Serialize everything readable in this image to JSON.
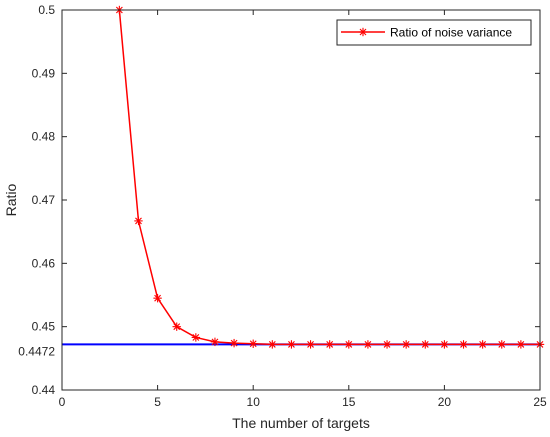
{
  "chart_data": {
    "type": "line",
    "title": "",
    "xlabel": "The number of targets",
    "ylabel": "Ratio",
    "xlim": [
      0,
      25
    ],
    "ylim": [
      0.44,
      0.5
    ],
    "x_ticks": [
      "0",
      "5",
      "10",
      "15",
      "20",
      "25"
    ],
    "y_ticks": [
      "0.44",
      "0.45",
      "0.46",
      "0.47",
      "0.48",
      "0.49",
      "0.5"
    ],
    "grid": false,
    "legend_position": "top-right",
    "series": [
      {
        "name": "Ratio of noise variance",
        "color": "#ff0000",
        "marker": "asterisk",
        "x": [
          3,
          4,
          5,
          6,
          7,
          8,
          9,
          10,
          11,
          12,
          13,
          14,
          15,
          16,
          17,
          18,
          19,
          20,
          21,
          22,
          23,
          24,
          25
        ],
        "y": [
          0.5,
          0.4667,
          0.4545,
          0.45,
          0.4483,
          0.4476,
          0.4474,
          0.4473,
          0.4472,
          0.4472,
          0.4472,
          0.4472,
          0.4472,
          0.4472,
          0.4472,
          0.4472,
          0.4472,
          0.4472,
          0.4472,
          0.4472,
          0.4472,
          0.4472,
          0.4472
        ]
      }
    ],
    "reference_line": {
      "y": 0.4472,
      "label": "0.4472",
      "color": "#0000ff"
    }
  }
}
